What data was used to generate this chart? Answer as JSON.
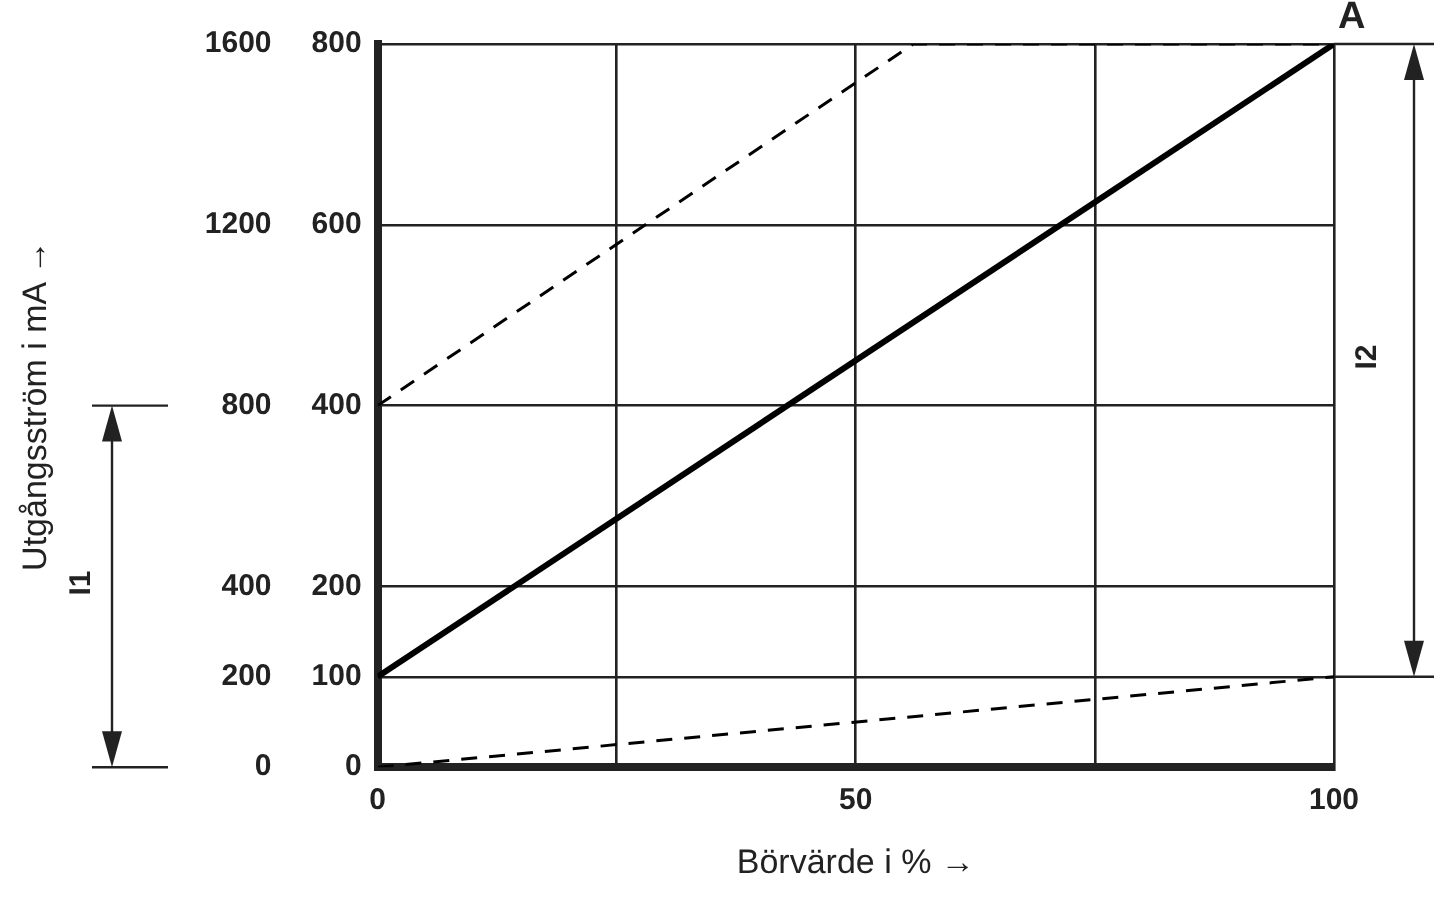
{
  "chart_data": {
    "type": "line",
    "xlabel": "Börvärde i % →",
    "y2label": "Utgångsström i mA →",
    "x": [
      0,
      100
    ],
    "xlim": [
      0,
      100
    ],
    "xticks": [
      0,
      {
        "value": 25,
        "label": null
      },
      50,
      {
        "value": 75,
        "label": null
      },
      100
    ],
    "ylim": [
      0,
      800
    ],
    "yticks": [
      0,
      100,
      200,
      400,
      600,
      800
    ],
    "y2lim": [
      0,
      1600
    ],
    "y2ticks": [
      0,
      200,
      400,
      800,
      1200,
      1600
    ],
    "grid": true,
    "legend": false,
    "marker": "none",
    "series": [
      {
        "color": "#000000",
        "values": [
          100,
          800
        ],
        "line_style": "solid"
      },
      {
        "x": [
          0,
          56,
          100
        ],
        "values": [
          400,
          800,
          800
        ],
        "color": "#000000",
        "line_style": "dashed"
      },
      {
        "values": [
          0,
          100
        ],
        "color": "#000000",
        "line_style": "dashed"
      }
    ],
    "annotations": [
      "A",
      "I1",
      "I2"
    ]
  }
}
